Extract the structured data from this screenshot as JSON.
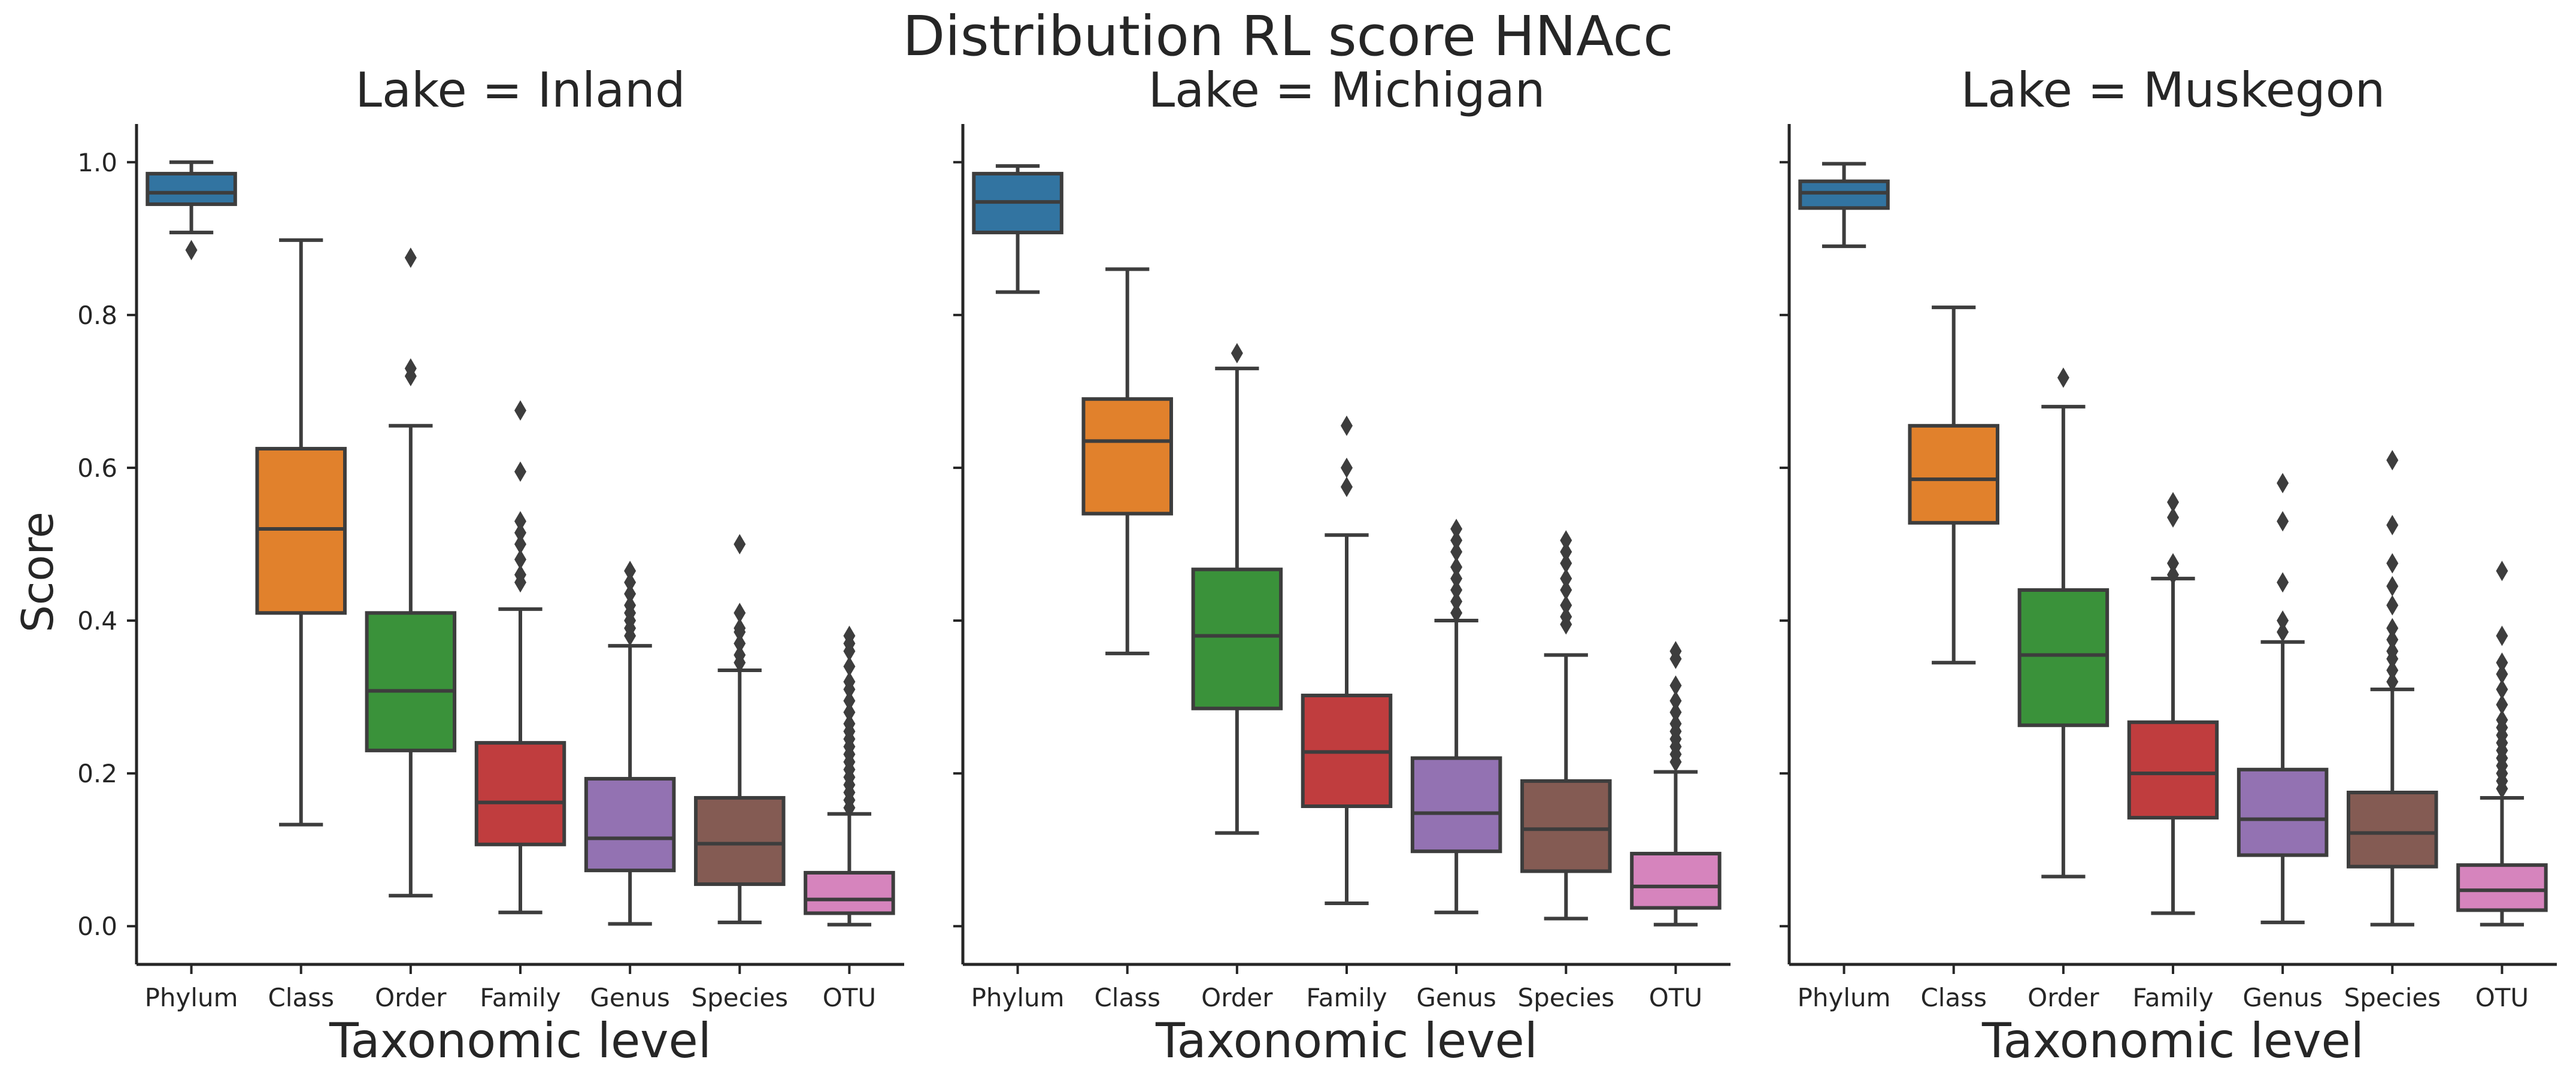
{
  "chart_data": {
    "type": "box",
    "title": "Distribution RL score HNAcc",
    "ylabel": "Score",
    "xlabel": "Taxonomic level",
    "categories": [
      "Phylum",
      "Class",
      "Order",
      "Family",
      "Genus",
      "Species",
      "OTU"
    ],
    "colors": [
      "#3274a1",
      "#e1812c",
      "#3a923a",
      "#c03d3e",
      "#9372b2",
      "#845b53",
      "#d684bd"
    ],
    "ylim": [
      -0.05,
      1.05
    ],
    "yticks": [
      "0.0",
      "0.2",
      "0.4",
      "0.6",
      "0.8",
      "1.0"
    ],
    "grid": false,
    "panels": [
      {
        "title": "Lake = Inland",
        "boxes": [
          {
            "category": "Phylum",
            "whislo": 0.908,
            "q1": 0.945,
            "median": 0.96,
            "q3": 0.985,
            "whishi": 1.0,
            "fliers": [
              0.885
            ]
          },
          {
            "category": "Class",
            "whislo": 0.133,
            "q1": 0.41,
            "median": 0.52,
            "q3": 0.625,
            "whishi": 0.898,
            "fliers": []
          },
          {
            "category": "Order",
            "whislo": 0.04,
            "q1": 0.23,
            "median": 0.308,
            "q3": 0.41,
            "whishi": 0.655,
            "fliers": [
              0.72,
              0.73,
              0.875
            ]
          },
          {
            "category": "Family",
            "whislo": 0.018,
            "q1": 0.107,
            "median": 0.162,
            "q3": 0.24,
            "whishi": 0.415,
            "fliers": [
              0.45,
              0.46,
              0.48,
              0.5,
              0.515,
              0.53,
              0.595,
              0.675
            ]
          },
          {
            "category": "Genus",
            "whislo": 0.003,
            "q1": 0.073,
            "median": 0.115,
            "q3": 0.193,
            "whishi": 0.367,
            "fliers": [
              0.38,
              0.39,
              0.4,
              0.41,
              0.42,
              0.435,
              0.45,
              0.465
            ]
          },
          {
            "category": "Species",
            "whislo": 0.005,
            "q1": 0.055,
            "median": 0.108,
            "q3": 0.168,
            "whishi": 0.335,
            "fliers": [
              0.345,
              0.355,
              0.37,
              0.385,
              0.39,
              0.41,
              0.5
            ]
          },
          {
            "category": "OTU",
            "whislo": 0.002,
            "q1": 0.017,
            "median": 0.035,
            "q3": 0.07,
            "whishi": 0.147,
            "fliers": [
              0.155,
              0.165,
              0.175,
              0.185,
              0.195,
              0.205,
              0.215,
              0.225,
              0.235,
              0.245,
              0.255,
              0.265,
              0.28,
              0.295,
              0.31,
              0.32,
              0.34,
              0.36,
              0.37,
              0.38
            ]
          }
        ]
      },
      {
        "title": "Lake = Michigan",
        "boxes": [
          {
            "category": "Phylum",
            "whislo": 0.83,
            "q1": 0.908,
            "median": 0.948,
            "q3": 0.985,
            "whishi": 0.995,
            "fliers": []
          },
          {
            "category": "Class",
            "whislo": 0.357,
            "q1": 0.54,
            "median": 0.635,
            "q3": 0.69,
            "whishi": 0.86,
            "fliers": []
          },
          {
            "category": "Order",
            "whislo": 0.122,
            "q1": 0.285,
            "median": 0.38,
            "q3": 0.467,
            "whishi": 0.73,
            "fliers": [
              0.75
            ]
          },
          {
            "category": "Family",
            "whislo": 0.03,
            "q1": 0.157,
            "median": 0.228,
            "q3": 0.302,
            "whishi": 0.512,
            "fliers": [
              0.575,
              0.6,
              0.655
            ]
          },
          {
            "category": "Genus",
            "whislo": 0.018,
            "q1": 0.098,
            "median": 0.148,
            "q3": 0.22,
            "whishi": 0.4,
            "fliers": [
              0.41,
              0.425,
              0.44,
              0.455,
              0.47,
              0.49,
              0.505,
              0.52
            ]
          },
          {
            "category": "Species",
            "whislo": 0.01,
            "q1": 0.072,
            "median": 0.127,
            "q3": 0.19,
            "whishi": 0.355,
            "fliers": [
              0.395,
              0.405,
              0.42,
              0.44,
              0.455,
              0.475,
              0.49,
              0.505
            ]
          },
          {
            "category": "OTU",
            "whislo": 0.002,
            "q1": 0.024,
            "median": 0.052,
            "q3": 0.095,
            "whishi": 0.202,
            "fliers": [
              0.215,
              0.225,
              0.235,
              0.245,
              0.255,
              0.265,
              0.28,
              0.295,
              0.315,
              0.35,
              0.36
            ]
          }
        ]
      },
      {
        "title": "Lake = Muskegon",
        "boxes": [
          {
            "category": "Phylum",
            "whislo": 0.89,
            "q1": 0.94,
            "median": 0.96,
            "q3": 0.975,
            "whishi": 0.998,
            "fliers": []
          },
          {
            "category": "Class",
            "whislo": 0.345,
            "q1": 0.528,
            "median": 0.585,
            "q3": 0.655,
            "whishi": 0.81,
            "fliers": []
          },
          {
            "category": "Order",
            "whislo": 0.065,
            "q1": 0.263,
            "median": 0.355,
            "q3": 0.44,
            "whishi": 0.68,
            "fliers": [
              0.718
            ]
          },
          {
            "category": "Family",
            "whislo": 0.017,
            "q1": 0.142,
            "median": 0.2,
            "q3": 0.267,
            "whishi": 0.455,
            "fliers": [
              0.46,
              0.475,
              0.535,
              0.555
            ]
          },
          {
            "category": "Genus",
            "whislo": 0.005,
            "q1": 0.093,
            "median": 0.14,
            "q3": 0.205,
            "whishi": 0.372,
            "fliers": [
              0.385,
              0.4,
              0.45,
              0.53,
              0.58
            ]
          },
          {
            "category": "Species",
            "whislo": 0.002,
            "q1": 0.078,
            "median": 0.122,
            "q3": 0.175,
            "whishi": 0.31,
            "fliers": [
              0.32,
              0.335,
              0.35,
              0.36,
              0.375,
              0.39,
              0.42,
              0.445,
              0.475,
              0.525,
              0.61
            ]
          },
          {
            "category": "OTU",
            "whislo": 0.002,
            "q1": 0.021,
            "median": 0.047,
            "q3": 0.08,
            "whishi": 0.168,
            "fliers": [
              0.18,
              0.19,
              0.2,
              0.21,
              0.22,
              0.23,
              0.24,
              0.25,
              0.26,
              0.27,
              0.29,
              0.31,
              0.33,
              0.345,
              0.38,
              0.465
            ]
          }
        ]
      }
    ]
  }
}
